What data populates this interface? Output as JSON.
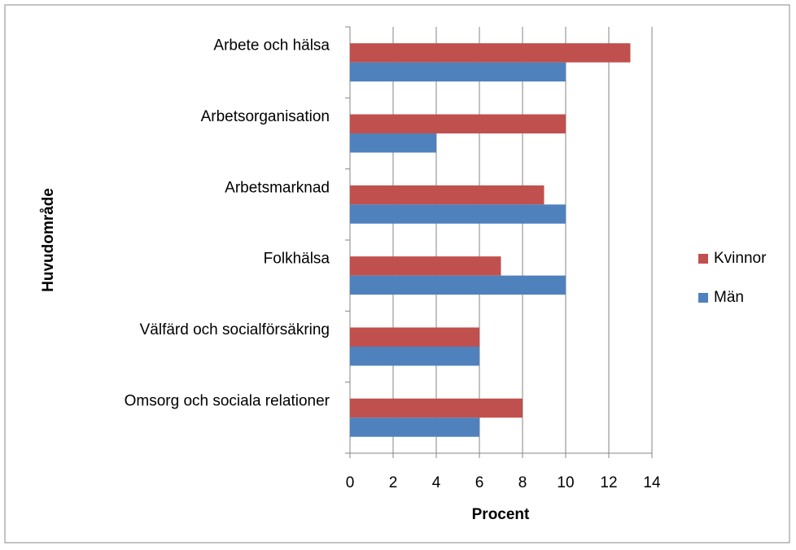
{
  "chart_data": {
    "type": "bar",
    "orientation": "horizontal",
    "xlabel": "Procent",
    "ylabel": "Huvudområde",
    "categories": [
      "Arbete och hälsa",
      "Arbetsorganisation",
      "Arbetsmarknad",
      "Folkhälsa",
      "Välfärd och socialförsäkring",
      "Omsorg och sociala relationer"
    ],
    "series": [
      {
        "name": "Kvinnor",
        "color": "#c0504d",
        "values": [
          13,
          10,
          9,
          7,
          6,
          8
        ]
      },
      {
        "name": "Män",
        "color": "#4f81bd",
        "values": [
          10,
          4,
          10,
          10,
          6,
          6
        ]
      }
    ],
    "xlim": [
      0,
      14
    ],
    "xticks": [
      0,
      2,
      4,
      6,
      8,
      10,
      12,
      14
    ],
    "grid": true,
    "legend": "right"
  }
}
